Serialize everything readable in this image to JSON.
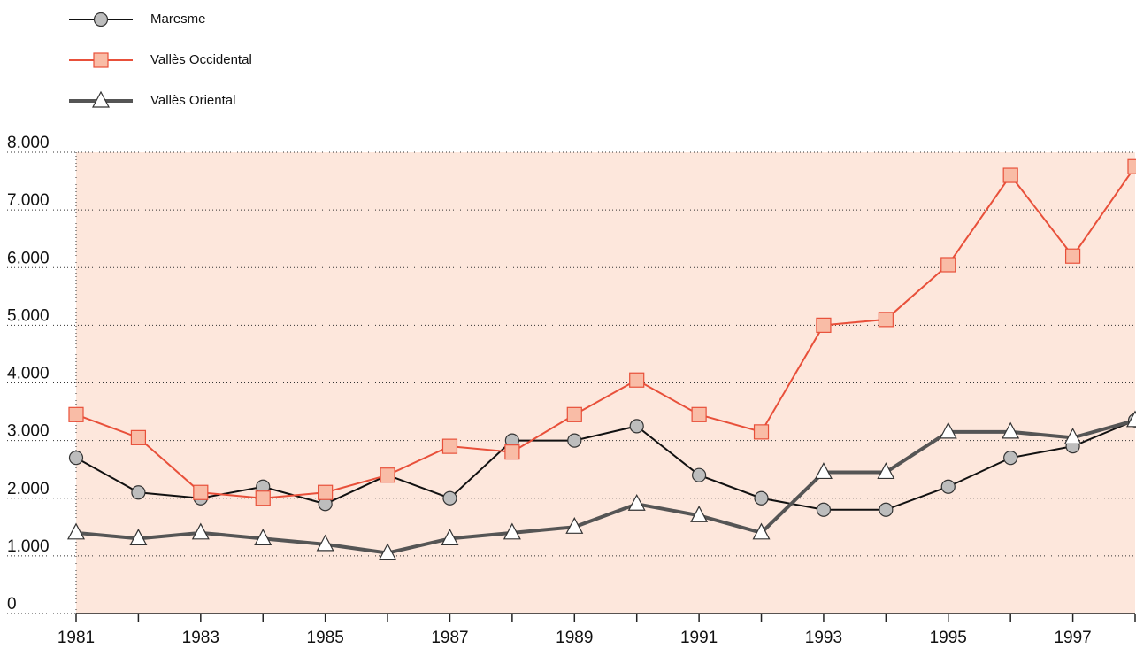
{
  "chart_data": {
    "type": "line",
    "x": [
      1981,
      1982,
      1983,
      1984,
      1985,
      1986,
      1987,
      1988,
      1989,
      1990,
      1991,
      1992,
      1993,
      1994,
      1995,
      1996,
      1997,
      1998
    ],
    "xlim": [
      1981,
      1998
    ],
    "xticks": [
      1981,
      1983,
      1985,
      1987,
      1989,
      1991,
      1993,
      1995,
      1997
    ],
    "ylim": [
      0,
      8000
    ],
    "yticks": [
      0,
      {
        "value": 1000,
        "label": "1.000"
      },
      {
        "value": 2000,
        "label": "2.000"
      },
      {
        "value": 3000,
        "label": "3.000"
      },
      {
        "value": 4000,
        "label": "4.000"
      },
      {
        "value": 5000,
        "label": "5.000"
      },
      {
        "value": 6000,
        "label": "6.000"
      },
      {
        "value": 7000,
        "label": "7.000"
      },
      {
        "value": 8000,
        "label": "8.000"
      }
    ],
    "grid": true,
    "legend": "top-left",
    "series": [
      {
        "name": "Maresme",
        "color": "#111111",
        "marker": "circle",
        "marker_color": "#bdbdbd",
        "values": [
          2700,
          2100,
          2000,
          2200,
          1900,
          2400,
          2000,
          3000,
          3000,
          3250,
          2400,
          2000,
          1800,
          1800,
          2200,
          2700,
          2900,
          3350
        ]
      },
      {
        "name": "Vallès Occidental",
        "color": "#e8503a",
        "marker": "square",
        "marker_color": "#f9bca6",
        "values": [
          3450,
          3050,
          2100,
          2000,
          2100,
          2400,
          2900,
          2800,
          3450,
          4050,
          3450,
          3150,
          5000,
          5100,
          6050,
          7600,
          6200,
          7750
        ]
      },
      {
        "name": "Vallès Oriental",
        "color": "#555555",
        "marker": "triangle",
        "marker_color": "#ffffff",
        "values": [
          1400,
          1300,
          1400,
          1300,
          1200,
          1050,
          1300,
          1400,
          1500,
          1900,
          1700,
          1400,
          2450,
          2450,
          3150,
          3150,
          3050,
          3350
        ]
      }
    ]
  }
}
